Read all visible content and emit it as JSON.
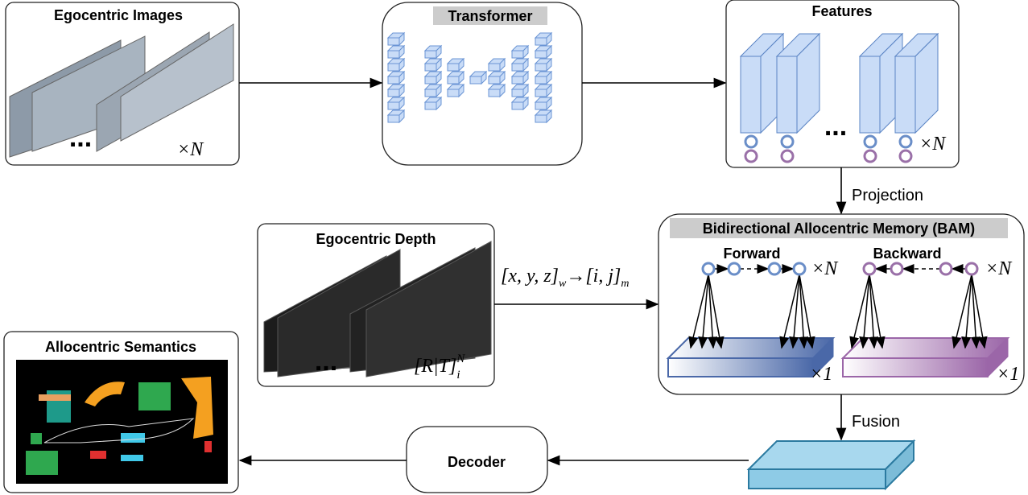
{
  "images": {
    "title": "Egocentric Images",
    "ellipsis": "...",
    "multiplier": "×N"
  },
  "transformer": {
    "title": "Transformer"
  },
  "features": {
    "title": "Features",
    "ellipsis": "...",
    "multiplier": "×N"
  },
  "projection": "Projection",
  "depth": {
    "title": "Egocentric Depth",
    "ellipsis": "...",
    "pose": {
      "base": "[R|T]",
      "sub": "i",
      "sup": "N"
    }
  },
  "mapping": {
    "source": "[x, y, z]",
    "source_sub": "w",
    "arrow": "→",
    "target": "[i, j]",
    "target_sub": "m"
  },
  "bam": {
    "title": "Bidirectional Allocentric Memory (BAM)",
    "forward": "Forward",
    "backward": "Backward",
    "forward_multiplier": "×N",
    "backward_multiplier": "×N",
    "forward_depth": "×1",
    "backward_depth": "×1"
  },
  "fusion": "Fusion",
  "decoder": "Decoder",
  "semantics": {
    "title": "Allocentric Semantics"
  }
}
